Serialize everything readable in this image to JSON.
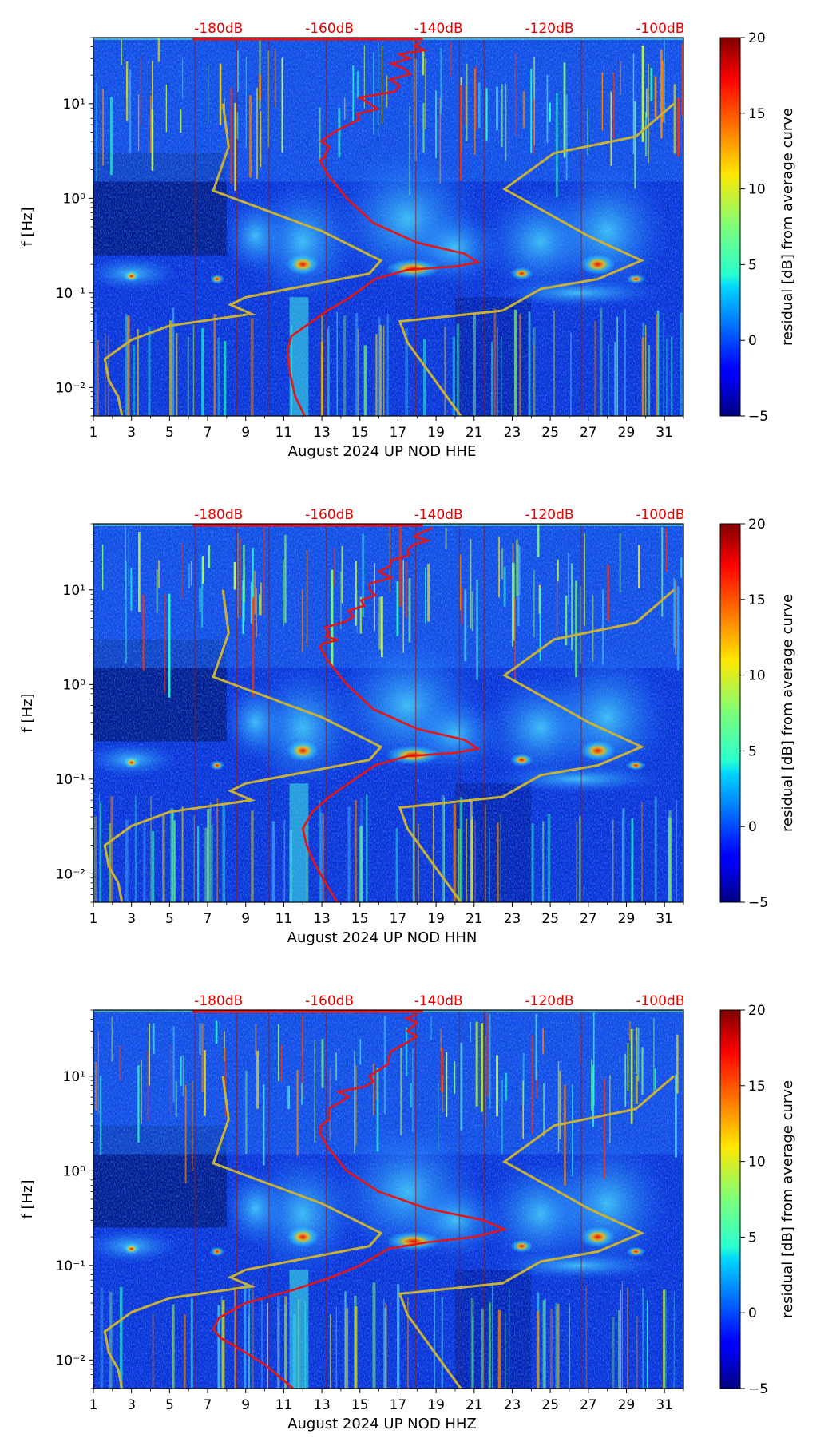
{
  "figure": {
    "colormap": "jet",
    "colors": {
      "model_curve": "#e81414",
      "reference_curve": "#c9b137",
      "top_labels": "#e60000",
      "background": "#ffffff",
      "axis": "#000000"
    }
  },
  "chart_data": [
    {
      "type": "heatmap",
      "panel": "HHE",
      "title": "",
      "xlabel": "August 2024 UP NOD  HHE",
      "ylabel": "f [Hz]",
      "xlim": [
        1,
        32
      ],
      "ylim": [
        0.005,
        50
      ],
      "yscale": "log",
      "x_ticks": [
        "1",
        "3",
        "5",
        "7",
        "9",
        "11",
        "13",
        "15",
        "17",
        "19",
        "21",
        "23",
        "25",
        "27",
        "29",
        "31"
      ],
      "y_ticks": [
        "10⁻²",
        "10⁻¹",
        "10⁰",
        "10¹"
      ],
      "top_labels": [
        "-180dB",
        "-160dB",
        "-140dB",
        "-120dB",
        "-100dB"
      ],
      "colorbar": {
        "label": "residual [dB] from average curve",
        "ticks": [
          "−5",
          "0",
          "5",
          "10",
          "15",
          "20"
        ],
        "range": [
          -5,
          20
        ]
      },
      "reference_curve": {
        "name": "noise model bounds",
        "points": [
          [
            2.5,
            0.005
          ],
          [
            2.3,
            0.008
          ],
          [
            1.8,
            0.012
          ],
          [
            1.6,
            0.02
          ],
          [
            3.0,
            0.032
          ],
          [
            5.0,
            0.045
          ],
          [
            9.3,
            0.06
          ],
          [
            8.2,
            0.075
          ],
          [
            9.0,
            0.09
          ],
          [
            15.5,
            0.16
          ],
          [
            16.1,
            0.22
          ],
          [
            13.0,
            0.45
          ],
          [
            7.3,
            1.2
          ],
          [
            8.1,
            3.5
          ],
          [
            7.8,
            10
          ]
        ]
      },
      "reference_curve_high": {
        "name": "noise model bounds (right)",
        "points": [
          [
            20.3,
            0.005
          ],
          [
            17.5,
            0.03
          ],
          [
            17.1,
            0.05
          ],
          [
            22.5,
            0.065
          ],
          [
            24.5,
            0.11
          ],
          [
            27.5,
            0.14
          ],
          [
            29.8,
            0.22
          ],
          [
            27.0,
            0.4
          ],
          [
            22.6,
            1.25
          ],
          [
            25.2,
            3.0
          ],
          [
            29.5,
            4.5
          ],
          [
            31.5,
            10
          ]
        ]
      },
      "model_curve": {
        "name": "average PSD curve",
        "points": [
          [
            12.1,
            0.005
          ],
          [
            11.6,
            0.008
          ],
          [
            11.3,
            0.015
          ],
          [
            11.2,
            0.025
          ],
          [
            11.4,
            0.035
          ],
          [
            12.5,
            0.05
          ],
          [
            13.3,
            0.065
          ],
          [
            14.5,
            0.09
          ],
          [
            15.8,
            0.14
          ],
          [
            17.5,
            0.175
          ],
          [
            20.0,
            0.19
          ],
          [
            21.2,
            0.21
          ],
          [
            20.5,
            0.26
          ],
          [
            18.0,
            0.34
          ],
          [
            15.7,
            0.55
          ],
          [
            14.3,
            1.0
          ],
          [
            13.3,
            1.8
          ],
          [
            12.9,
            2.5
          ],
          [
            13.4,
            3.5
          ],
          [
            14.4,
            6.0
          ],
          [
            15.5,
            10.0
          ],
          [
            16.6,
            18.0
          ],
          [
            17.6,
            30.0
          ],
          [
            18.2,
            45.0
          ]
        ]
      }
    },
    {
      "type": "heatmap",
      "panel": "HHN",
      "title": "",
      "xlabel": "August 2024 UP NOD  HHN",
      "ylabel": "f [Hz]",
      "xlim": [
        1,
        32
      ],
      "ylim": [
        0.005,
        50
      ],
      "yscale": "log",
      "x_ticks": [
        "1",
        "3",
        "5",
        "7",
        "9",
        "11",
        "13",
        "15",
        "17",
        "19",
        "21",
        "23",
        "25",
        "27",
        "29",
        "31"
      ],
      "y_ticks": [
        "10⁻²",
        "10⁻¹",
        "10⁰",
        "10¹"
      ],
      "top_labels": [
        "-180dB",
        "-160dB",
        "-140dB",
        "-120dB",
        "-100dB"
      ],
      "colorbar": {
        "label": "residual [dB] from average curve",
        "ticks": [
          "−5",
          "0",
          "5",
          "10",
          "15",
          "20"
        ],
        "range": [
          -5,
          20
        ]
      },
      "reference_curve": {
        "name": "noise model bounds",
        "points": [
          [
            2.5,
            0.005
          ],
          [
            2.3,
            0.008
          ],
          [
            1.8,
            0.012
          ],
          [
            1.6,
            0.02
          ],
          [
            3.0,
            0.032
          ],
          [
            5.0,
            0.045
          ],
          [
            9.3,
            0.06
          ],
          [
            8.2,
            0.075
          ],
          [
            9.0,
            0.09
          ],
          [
            15.5,
            0.16
          ],
          [
            16.1,
            0.22
          ],
          [
            13.0,
            0.45
          ],
          [
            7.3,
            1.2
          ],
          [
            8.1,
            3.5
          ],
          [
            7.8,
            10
          ]
        ]
      },
      "reference_curve_high": {
        "name": "noise model bounds (right)",
        "points": [
          [
            20.3,
            0.005
          ],
          [
            17.5,
            0.03
          ],
          [
            17.1,
            0.05
          ],
          [
            22.5,
            0.065
          ],
          [
            24.5,
            0.11
          ],
          [
            27.5,
            0.14
          ],
          [
            29.8,
            0.22
          ],
          [
            27.0,
            0.4
          ],
          [
            22.6,
            1.25
          ],
          [
            25.2,
            3.0
          ],
          [
            29.5,
            4.5
          ],
          [
            31.5,
            10
          ]
        ]
      },
      "model_curve": {
        "name": "average PSD curve",
        "points": [
          [
            13.8,
            0.005
          ],
          [
            13.2,
            0.008
          ],
          [
            12.6,
            0.013
          ],
          [
            12.2,
            0.02
          ],
          [
            12.0,
            0.03
          ],
          [
            12.5,
            0.045
          ],
          [
            13.4,
            0.065
          ],
          [
            14.4,
            0.09
          ],
          [
            15.8,
            0.14
          ],
          [
            17.5,
            0.175
          ],
          [
            20.0,
            0.19
          ],
          [
            21.2,
            0.21
          ],
          [
            20.5,
            0.26
          ],
          [
            18.0,
            0.34
          ],
          [
            15.7,
            0.55
          ],
          [
            14.3,
            1.0
          ],
          [
            13.3,
            1.8
          ],
          [
            12.9,
            2.5
          ],
          [
            13.4,
            3.5
          ],
          [
            14.4,
            6.0
          ],
          [
            15.5,
            10.0
          ],
          [
            16.6,
            18.0
          ],
          [
            17.8,
            30.0
          ],
          [
            18.8,
            45.0
          ]
        ]
      }
    },
    {
      "type": "heatmap",
      "panel": "HHZ",
      "title": "",
      "xlabel": "August 2024 UP NOD  HHZ",
      "ylabel": "f [Hz]",
      "xlim": [
        1,
        32
      ],
      "ylim": [
        0.005,
        50
      ],
      "yscale": "log",
      "x_ticks": [
        "1",
        "3",
        "5",
        "7",
        "9",
        "11",
        "13",
        "15",
        "17",
        "19",
        "21",
        "23",
        "25",
        "27",
        "29",
        "31"
      ],
      "y_ticks": [
        "10⁻²",
        "10⁻¹",
        "10⁰",
        "10¹"
      ],
      "top_labels": [
        "-180dB",
        "-160dB",
        "-140dB",
        "-120dB",
        "-100dB"
      ],
      "colorbar": {
        "label": "residual [dB] from average curve",
        "ticks": [
          "−5",
          "0",
          "5",
          "10",
          "15",
          "20"
        ],
        "range": [
          -5,
          20
        ]
      },
      "reference_curve": {
        "name": "noise model bounds",
        "points": [
          [
            2.5,
            0.005
          ],
          [
            2.3,
            0.008
          ],
          [
            1.8,
            0.012
          ],
          [
            1.6,
            0.02
          ],
          [
            3.0,
            0.032
          ],
          [
            5.0,
            0.045
          ],
          [
            9.3,
            0.06
          ],
          [
            8.2,
            0.075
          ],
          [
            9.0,
            0.09
          ],
          [
            15.5,
            0.16
          ],
          [
            16.1,
            0.22
          ],
          [
            13.0,
            0.45
          ],
          [
            7.3,
            1.2
          ],
          [
            8.1,
            3.5
          ],
          [
            7.8,
            10
          ]
        ]
      },
      "reference_curve_high": {
        "name": "noise model bounds (right)",
        "points": [
          [
            20.3,
            0.005
          ],
          [
            17.5,
            0.03
          ],
          [
            17.1,
            0.05
          ],
          [
            22.5,
            0.065
          ],
          [
            24.5,
            0.11
          ],
          [
            27.5,
            0.14
          ],
          [
            29.8,
            0.22
          ],
          [
            27.0,
            0.4
          ],
          [
            22.6,
            1.25
          ],
          [
            25.2,
            3.0
          ],
          [
            29.5,
            4.5
          ],
          [
            31.5,
            10
          ]
        ]
      },
      "model_curve": {
        "name": "average PSD curve",
        "points": [
          [
            11.5,
            0.005
          ],
          [
            10.0,
            0.009
          ],
          [
            8.7,
            0.013
          ],
          [
            7.7,
            0.017
          ],
          [
            7.3,
            0.021
          ],
          [
            7.6,
            0.028
          ],
          [
            9.0,
            0.04
          ],
          [
            11.5,
            0.055
          ],
          [
            13.5,
            0.075
          ],
          [
            15.0,
            0.1
          ],
          [
            16.5,
            0.15
          ],
          [
            18.5,
            0.175
          ],
          [
            21.0,
            0.2
          ],
          [
            22.6,
            0.24
          ],
          [
            21.5,
            0.3
          ],
          [
            18.5,
            0.4
          ],
          [
            16.0,
            0.6
          ],
          [
            14.3,
            1.0
          ],
          [
            13.3,
            1.8
          ],
          [
            12.9,
            2.5
          ],
          [
            13.4,
            3.5
          ],
          [
            14.4,
            6.0
          ],
          [
            15.5,
            10.0
          ],
          [
            16.6,
            18.0
          ],
          [
            17.5,
            30.0
          ],
          [
            18.0,
            45.0
          ]
        ]
      }
    }
  ]
}
